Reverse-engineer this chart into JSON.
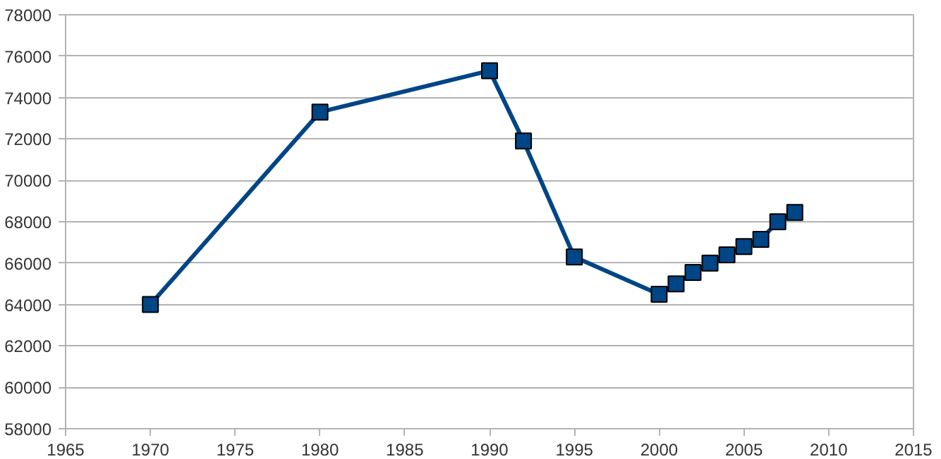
{
  "chart_data": {
    "type": "line",
    "x": [
      1970,
      1980,
      1990,
      1992,
      1995,
      2000,
      2001,
      2002,
      2003,
      2004,
      2005,
      2006,
      2007,
      2008
    ],
    "series": [
      {
        "color": "#004586",
        "values": [
          64000,
          73300,
          75300,
          71900,
          66300,
          64500,
          65000,
          65550,
          66000,
          66400,
          66800,
          67150,
          68000,
          68450
        ]
      }
    ],
    "xlim": [
      1965,
      2015
    ],
    "xticks": [
      1965,
      1970,
      1975,
      1980,
      1985,
      1990,
      1995,
      2000,
      2005,
      2010,
      2015
    ],
    "ylim": [
      58000,
      78000
    ],
    "yticks": [
      58000,
      60000,
      62000,
      64000,
      66000,
      68000,
      70000,
      72000,
      74000,
      76000,
      78000
    ],
    "grid": "y",
    "marker": "square",
    "line_style": "solid"
  }
}
